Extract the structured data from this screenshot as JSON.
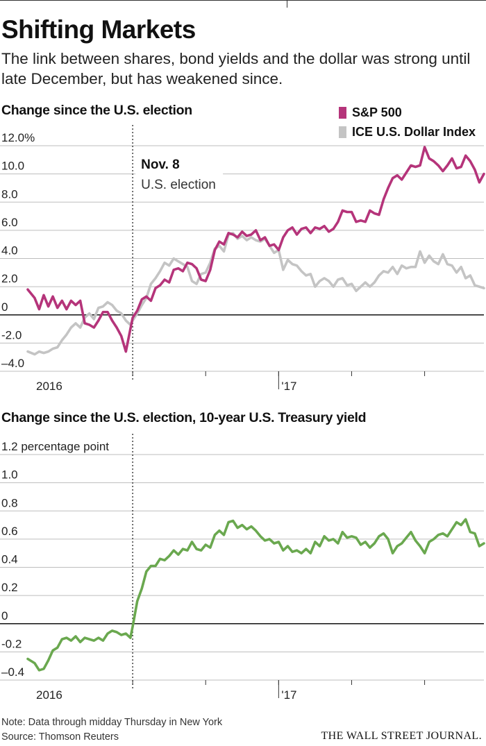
{
  "header": {
    "title": "Shifting Markets",
    "dek": "The link between shares, bond yields and the dollar was strong until late December, but has weakened since."
  },
  "colors": {
    "sp500": "#b5347a",
    "dollar": "#c4c4c4",
    "treasury": "#6aa84f"
  },
  "legend": {
    "items": [
      "S&P 500",
      "ICE U.S. Dollar Index"
    ]
  },
  "chart_data": [
    {
      "type": "line",
      "title": "Change since the U.S. election",
      "ylim": [
        -4.0,
        12.0
      ],
      "y_ticks": [
        -4.0,
        -2.0,
        0,
        2.0,
        4.0,
        6.0,
        8.0,
        10.0,
        12.0
      ],
      "y_tick_labels": [
        "–4.0",
        "-2.0",
        "0",
        "2.0",
        "4.0",
        "6.0",
        "8.0",
        "10.0",
        "12.0%"
      ],
      "x_range": [
        0,
        100
      ],
      "x_tick_labels": [
        {
          "x": 5,
          "label": "2016"
        },
        {
          "x": 55,
          "label": "'17"
        }
      ],
      "x_tick_marks": [
        23,
        39,
        55,
        71,
        87
      ],
      "annotation": {
        "x": 23,
        "title": "Nov. 8",
        "subtitle": "U.S. election"
      },
      "series": [
        {
          "name": "S&P 500",
          "x": [
            0,
            1.5,
            2.5,
            3.5,
            4.5,
            5.5,
            6.5,
            7.5,
            8.5,
            9.5,
            10.5,
            11.5,
            12.5,
            13.5,
            14.5,
            15.5,
            16.5,
            17.5,
            18.5,
            19.5,
            20.5,
            21.5,
            22.5,
            23,
            24,
            25,
            26,
            27,
            28,
            29,
            30,
            31,
            32,
            33,
            34,
            35,
            36,
            37,
            38,
            39,
            40,
            41,
            42,
            43,
            44,
            45,
            46,
            47,
            48,
            49,
            50,
            51,
            52,
            53,
            54,
            55,
            56,
            57,
            58,
            59,
            60,
            61,
            62,
            63,
            64,
            65,
            66,
            67,
            68,
            69,
            70,
            71,
            72,
            73,
            74,
            75,
            76,
            77,
            78,
            79,
            80,
            81,
            82,
            83,
            84,
            85,
            86,
            87,
            88,
            89,
            90,
            91,
            92,
            93,
            94,
            95,
            96,
            97,
            98,
            99,
            100
          ],
          "values": [
            1.8,
            1.2,
            0.4,
            1.4,
            0.6,
            1.3,
            0.5,
            1.0,
            0.4,
            1.0,
            0.7,
            1.0,
            -0.6,
            -0.7,
            -0.9,
            -0.4,
            0.2,
            0.2,
            -0.4,
            -0.9,
            -1.5,
            -2.6,
            -1.0,
            -0.2,
            0.3,
            1.1,
            1.3,
            1.0,
            1.9,
            2.1,
            2.5,
            2.3,
            3.2,
            3.3,
            3.1,
            3.7,
            3.6,
            3.3,
            2.5,
            2.4,
            3.2,
            4.6,
            5.2,
            5.0,
            5.8,
            5.7,
            5.5,
            5.9,
            5.6,
            5.7,
            6.0,
            5.3,
            5.5,
            4.9,
            5.0,
            4.6,
            5.5,
            6.0,
            6.2,
            5.7,
            6.1,
            6.2,
            5.8,
            6.2,
            6.1,
            6.3,
            5.9,
            6.1,
            6.6,
            7.4,
            7.3,
            7.3,
            6.6,
            6.7,
            6.6,
            7.4,
            7.2,
            7.1,
            8.2,
            9.0,
            9.7,
            9.9,
            9.6,
            10.1,
            10.6,
            10.5,
            10.6,
            11.9,
            11.1,
            10.9,
            10.6,
            10.2,
            10.6,
            11.1,
            10.4,
            10.5,
            11.3,
            10.9,
            10.3,
            9.4,
            10.0
          ]
        },
        {
          "name": "ICE U.S. Dollar Index",
          "x": [
            0,
            1.5,
            2.5,
            3.5,
            4.5,
            5.5,
            6.5,
            7.5,
            8.5,
            9.5,
            10.5,
            11.5,
            12.5,
            13.5,
            14.5,
            15.5,
            16.5,
            17.5,
            18.5,
            19.5,
            20.5,
            21.5,
            22.5,
            23,
            24,
            25,
            26,
            27,
            28,
            29,
            30,
            31,
            32,
            33,
            34,
            35,
            36,
            37,
            38,
            39,
            40,
            41,
            42,
            43,
            44,
            45,
            46,
            47,
            48,
            49,
            50,
            51,
            52,
            53,
            54,
            55,
            56,
            57,
            58,
            59,
            60,
            61,
            62,
            63,
            64,
            65,
            66,
            67,
            68,
            69,
            70,
            71,
            72,
            73,
            74,
            75,
            76,
            77,
            78,
            79,
            80,
            81,
            82,
            83,
            84,
            85,
            86,
            87,
            88,
            89,
            90,
            91,
            92,
            93,
            94,
            95,
            96,
            97,
            98,
            99,
            100
          ],
          "values": [
            -2.6,
            -2.8,
            -2.6,
            -2.7,
            -2.6,
            -2.4,
            -2.3,
            -1.8,
            -1.4,
            -0.9,
            -0.6,
            -0.9,
            -0.2,
            0.1,
            -0.3,
            0.5,
            0.6,
            0.9,
            0.7,
            0.3,
            0.1,
            -0.4,
            -0.7,
            -0.4,
            0.1,
            0.7,
            1.2,
            2.2,
            2.6,
            3.1,
            3.7,
            3.5,
            4.0,
            3.8,
            3.6,
            3.4,
            2.4,
            2.2,
            2.9,
            3.0,
            3.7,
            4.7,
            4.9,
            4.5,
            5.7,
            5.8,
            5.4,
            5.6,
            5.3,
            5.5,
            5.3,
            5.2,
            5.4,
            4.9,
            4.4,
            4.6,
            3.2,
            3.9,
            3.6,
            3.5,
            3.1,
            2.8,
            2.9,
            2.0,
            2.4,
            2.6,
            2.4,
            2.0,
            2.5,
            2.6,
            2.1,
            2.2,
            1.7,
            2.0,
            2.3,
            2.0,
            2.3,
            2.8,
            3.1,
            3.0,
            3.4,
            2.9,
            3.5,
            3.3,
            3.4,
            3.4,
            4.5,
            3.7,
            4.2,
            3.8,
            3.6,
            4.3,
            3.6,
            3.5,
            3.0,
            3.4,
            2.6,
            2.8,
            2.1,
            2.0,
            1.9
          ]
        }
      ]
    },
    {
      "type": "line",
      "title": "Change since the U.S. election, 10-year U.S. Treasury yield",
      "ylim": [
        -0.4,
        1.2
      ],
      "y_ticks": [
        -0.4,
        -0.2,
        0,
        0.2,
        0.4,
        0.6,
        0.8,
        1.0,
        1.2
      ],
      "y_tick_labels": [
        "–0.4",
        "-0.2",
        "0",
        "0.2",
        "0.4",
        "0.6",
        "0.8",
        "1.0",
        "1.2 percentage point"
      ],
      "x_range": [
        0,
        100
      ],
      "x_tick_labels": [
        {
          "x": 5,
          "label": "2016"
        },
        {
          "x": 55,
          "label": "'17"
        }
      ],
      "x_tick_marks": [
        23,
        39,
        55,
        71,
        87
      ],
      "annotation": {
        "x": 23
      },
      "series": [
        {
          "name": "10-year U.S. Treasury yield",
          "x": [
            0,
            1.5,
            2.5,
            3.5,
            4.5,
            5.5,
            6.5,
            7.5,
            8.5,
            9.5,
            10.5,
            11.5,
            12.5,
            13.5,
            14.5,
            15.5,
            16.5,
            17.5,
            18.5,
            19.5,
            20.5,
            21.5,
            22.5,
            23,
            24,
            25,
            26,
            27,
            28,
            29,
            30,
            31,
            32,
            33,
            34,
            35,
            36,
            37,
            38,
            39,
            40,
            41,
            42,
            43,
            44,
            45,
            46,
            47,
            48,
            49,
            50,
            51,
            52,
            53,
            54,
            55,
            56,
            57,
            58,
            59,
            60,
            61,
            62,
            63,
            64,
            65,
            66,
            67,
            68,
            69,
            70,
            71,
            72,
            73,
            74,
            75,
            76,
            77,
            78,
            79,
            80,
            81,
            82,
            83,
            84,
            85,
            86,
            87,
            88,
            89,
            90,
            91,
            92,
            93,
            94,
            95,
            96,
            97,
            98,
            99,
            100
          ],
          "values": [
            -0.25,
            -0.28,
            -0.33,
            -0.32,
            -0.26,
            -0.19,
            -0.17,
            -0.11,
            -0.1,
            -0.12,
            -0.09,
            -0.13,
            -0.1,
            -0.11,
            -0.12,
            -0.1,
            -0.12,
            -0.07,
            -0.05,
            -0.06,
            -0.08,
            -0.07,
            -0.1,
            -0.02,
            0.16,
            0.25,
            0.37,
            0.41,
            0.41,
            0.46,
            0.45,
            0.48,
            0.52,
            0.49,
            0.53,
            0.52,
            0.58,
            0.53,
            0.52,
            0.56,
            0.54,
            0.63,
            0.66,
            0.63,
            0.72,
            0.73,
            0.68,
            0.7,
            0.67,
            0.69,
            0.66,
            0.62,
            0.59,
            0.6,
            0.57,
            0.58,
            0.52,
            0.55,
            0.51,
            0.52,
            0.5,
            0.53,
            0.5,
            0.58,
            0.55,
            0.62,
            0.59,
            0.6,
            0.57,
            0.65,
            0.61,
            0.62,
            0.61,
            0.56,
            0.58,
            0.54,
            0.57,
            0.62,
            0.64,
            0.6,
            0.5,
            0.55,
            0.57,
            0.61,
            0.65,
            0.59,
            0.55,
            0.5,
            0.58,
            0.6,
            0.63,
            0.64,
            0.62,
            0.67,
            0.72,
            0.7,
            0.74,
            0.65,
            0.64,
            0.55,
            0.57
          ]
        }
      ]
    }
  ],
  "footer": {
    "note": "Note: Data through midday Thursday in New York",
    "source": "Source: Thomson Reuters",
    "masthead": "THE WALL STREET JOURNAL."
  }
}
